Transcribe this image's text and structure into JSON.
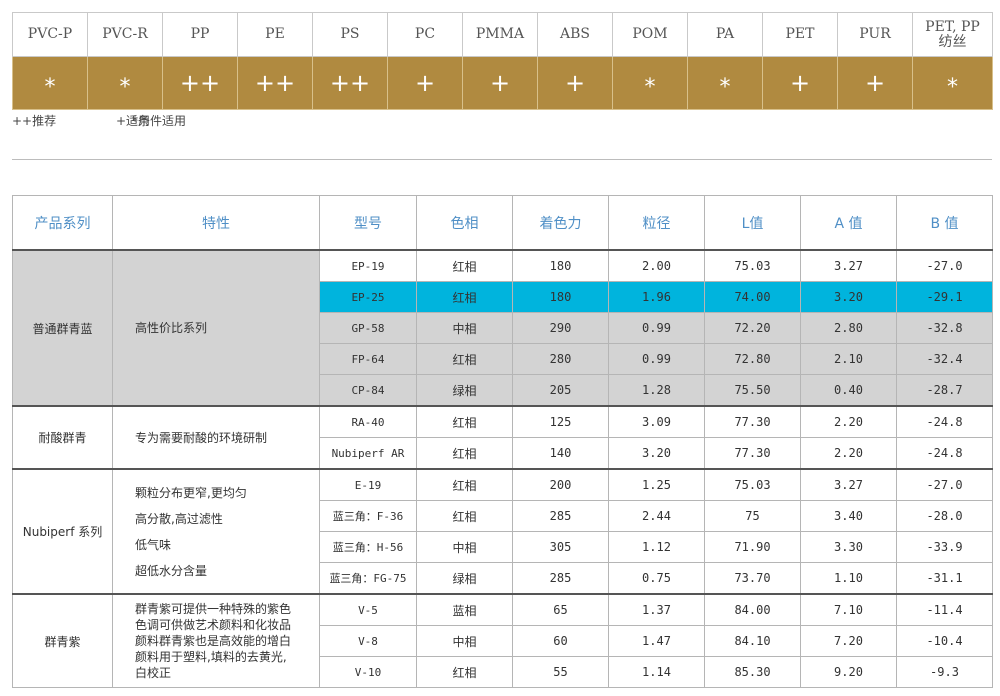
{
  "compatibility": {
    "headers": [
      "PVC-P",
      "PVC-R",
      "PP",
      "PE",
      "PS",
      "PC",
      "PMMA",
      "ABS",
      "POM",
      "PA",
      "PET",
      "PUR",
      "PET, PP",
      "纺丝"
    ],
    "columns": [
      {
        "name": "PVC-P",
        "mark": "*"
      },
      {
        "name": "PVC-R",
        "mark": "*"
      },
      {
        "name": "PP",
        "mark": "++"
      },
      {
        "name": "PE",
        "mark": "++"
      },
      {
        "name": "PS",
        "mark": "++"
      },
      {
        "name": "PC",
        "mark": "+"
      },
      {
        "name": "PMMA",
        "mark": "+"
      },
      {
        "name": "ABS",
        "mark": "+"
      },
      {
        "name": "POM",
        "mark": "*"
      },
      {
        "name": "PA",
        "mark": "*"
      },
      {
        "name": "PET",
        "mark": "+"
      },
      {
        "name": "PUR",
        "mark": "+"
      },
      {
        "name": "PET, PP",
        "name2": "纺丝",
        "mark": "*"
      }
    ],
    "legend": [
      "++推荐",
      "+适用",
      "*条件适用"
    ]
  },
  "products": {
    "headers": [
      "产品系列",
      "特性",
      "型号",
      "色相",
      "着色力",
      "粒径",
      "L值",
      "A 值",
      "B 值"
    ],
    "groups": [
      {
        "series": "普通群青蓝",
        "features": [
          "高性价比系列"
        ],
        "rows": [
          {
            "model": "EP-19",
            "hue": "红相",
            "strength": "180",
            "size": "2.00",
            "L": "75.03",
            "A": "3.27",
            "B": "-27.0"
          },
          {
            "model": "EP-25",
            "hue": "红相",
            "strength": "180",
            "size": "1.96",
            "L": "74.00",
            "A": "3.20",
            "B": "-29.1"
          },
          {
            "model": "GP-58",
            "hue": "中相",
            "strength": "290",
            "size": "0.99",
            "L": "72.20",
            "A": "2.80",
            "B": "-32.8"
          },
          {
            "model": "FP-64",
            "hue": "红相",
            "strength": "280",
            "size": "0.99",
            "L": "72.80",
            "A": "2.10",
            "B": "-32.4"
          },
          {
            "model": "CP-84",
            "hue": "绿相",
            "strength": "205",
            "size": "1.28",
            "L": "75.50",
            "A": "0.40",
            "B": "-28.7"
          }
        ]
      },
      {
        "series": "耐酸群青",
        "features": [
          "专为需要耐酸的环境研制"
        ],
        "rows": [
          {
            "model": "RA-40",
            "hue": "红相",
            "strength": "125",
            "size": "3.09",
            "L": "77.30",
            "A": "2.20",
            "B": "-24.8"
          },
          {
            "model": "Nubiperf AR",
            "hue": "红相",
            "strength": "140",
            "size": "3.20",
            "L": "77.30",
            "A": "2.20",
            "B": "-24.8"
          }
        ]
      },
      {
        "series": "Nubiperf 系列",
        "features": [
          "颗粒分布更窄,更均匀",
          "高分散,高过滤性",
          "低气味",
          "超低水分含量"
        ],
        "rows": [
          {
            "model": "E-19",
            "hue": "红相",
            "strength": "200",
            "size": "1.25",
            "L": "75.03",
            "A": "3.27",
            "B": "-27.0"
          },
          {
            "model": "蓝三角：F-36",
            "hue": "红相",
            "strength": "285",
            "size": "2.44",
            "L": "75",
            "A": "3.40",
            "B": "-28.0"
          },
          {
            "model": "蓝三角：H-56",
            "hue": "中相",
            "strength": "305",
            "size": "1.12",
            "L": "71.90",
            "A": "3.30",
            "B": "-33.9"
          },
          {
            "model": "蓝三角：FG-75",
            "hue": "绿相",
            "strength": "285",
            "size": "0.75",
            "L": "73.70",
            "A": "1.10",
            "B": "-31.1"
          }
        ]
      },
      {
        "series": "群青紫",
        "features": [
          "群青紫可提供一种特殊的紫色",
          "色调可供做艺术颜料和化妆品",
          "颜料群青紫也是高效能的增白",
          "颜料用于塑料,填料的去黄光,",
          "白校正"
        ],
        "rows": [
          {
            "model": "V-5",
            "hue": "蓝相",
            "strength": "65",
            "size": "1.37",
            "L": "84.00",
            "A": "7.10",
            "B": "-11.4"
          },
          {
            "model": "V-8",
            "hue": "中相",
            "strength": "60",
            "size": "1.47",
            "L": "84.10",
            "A": "7.20",
            "B": "-10.4"
          },
          {
            "model": "V-10",
            "hue": "红相",
            "strength": "55",
            "size": "1.14",
            "L": "85.30",
            "A": "9.20",
            "B": "-9.3"
          }
        ]
      }
    ]
  }
}
